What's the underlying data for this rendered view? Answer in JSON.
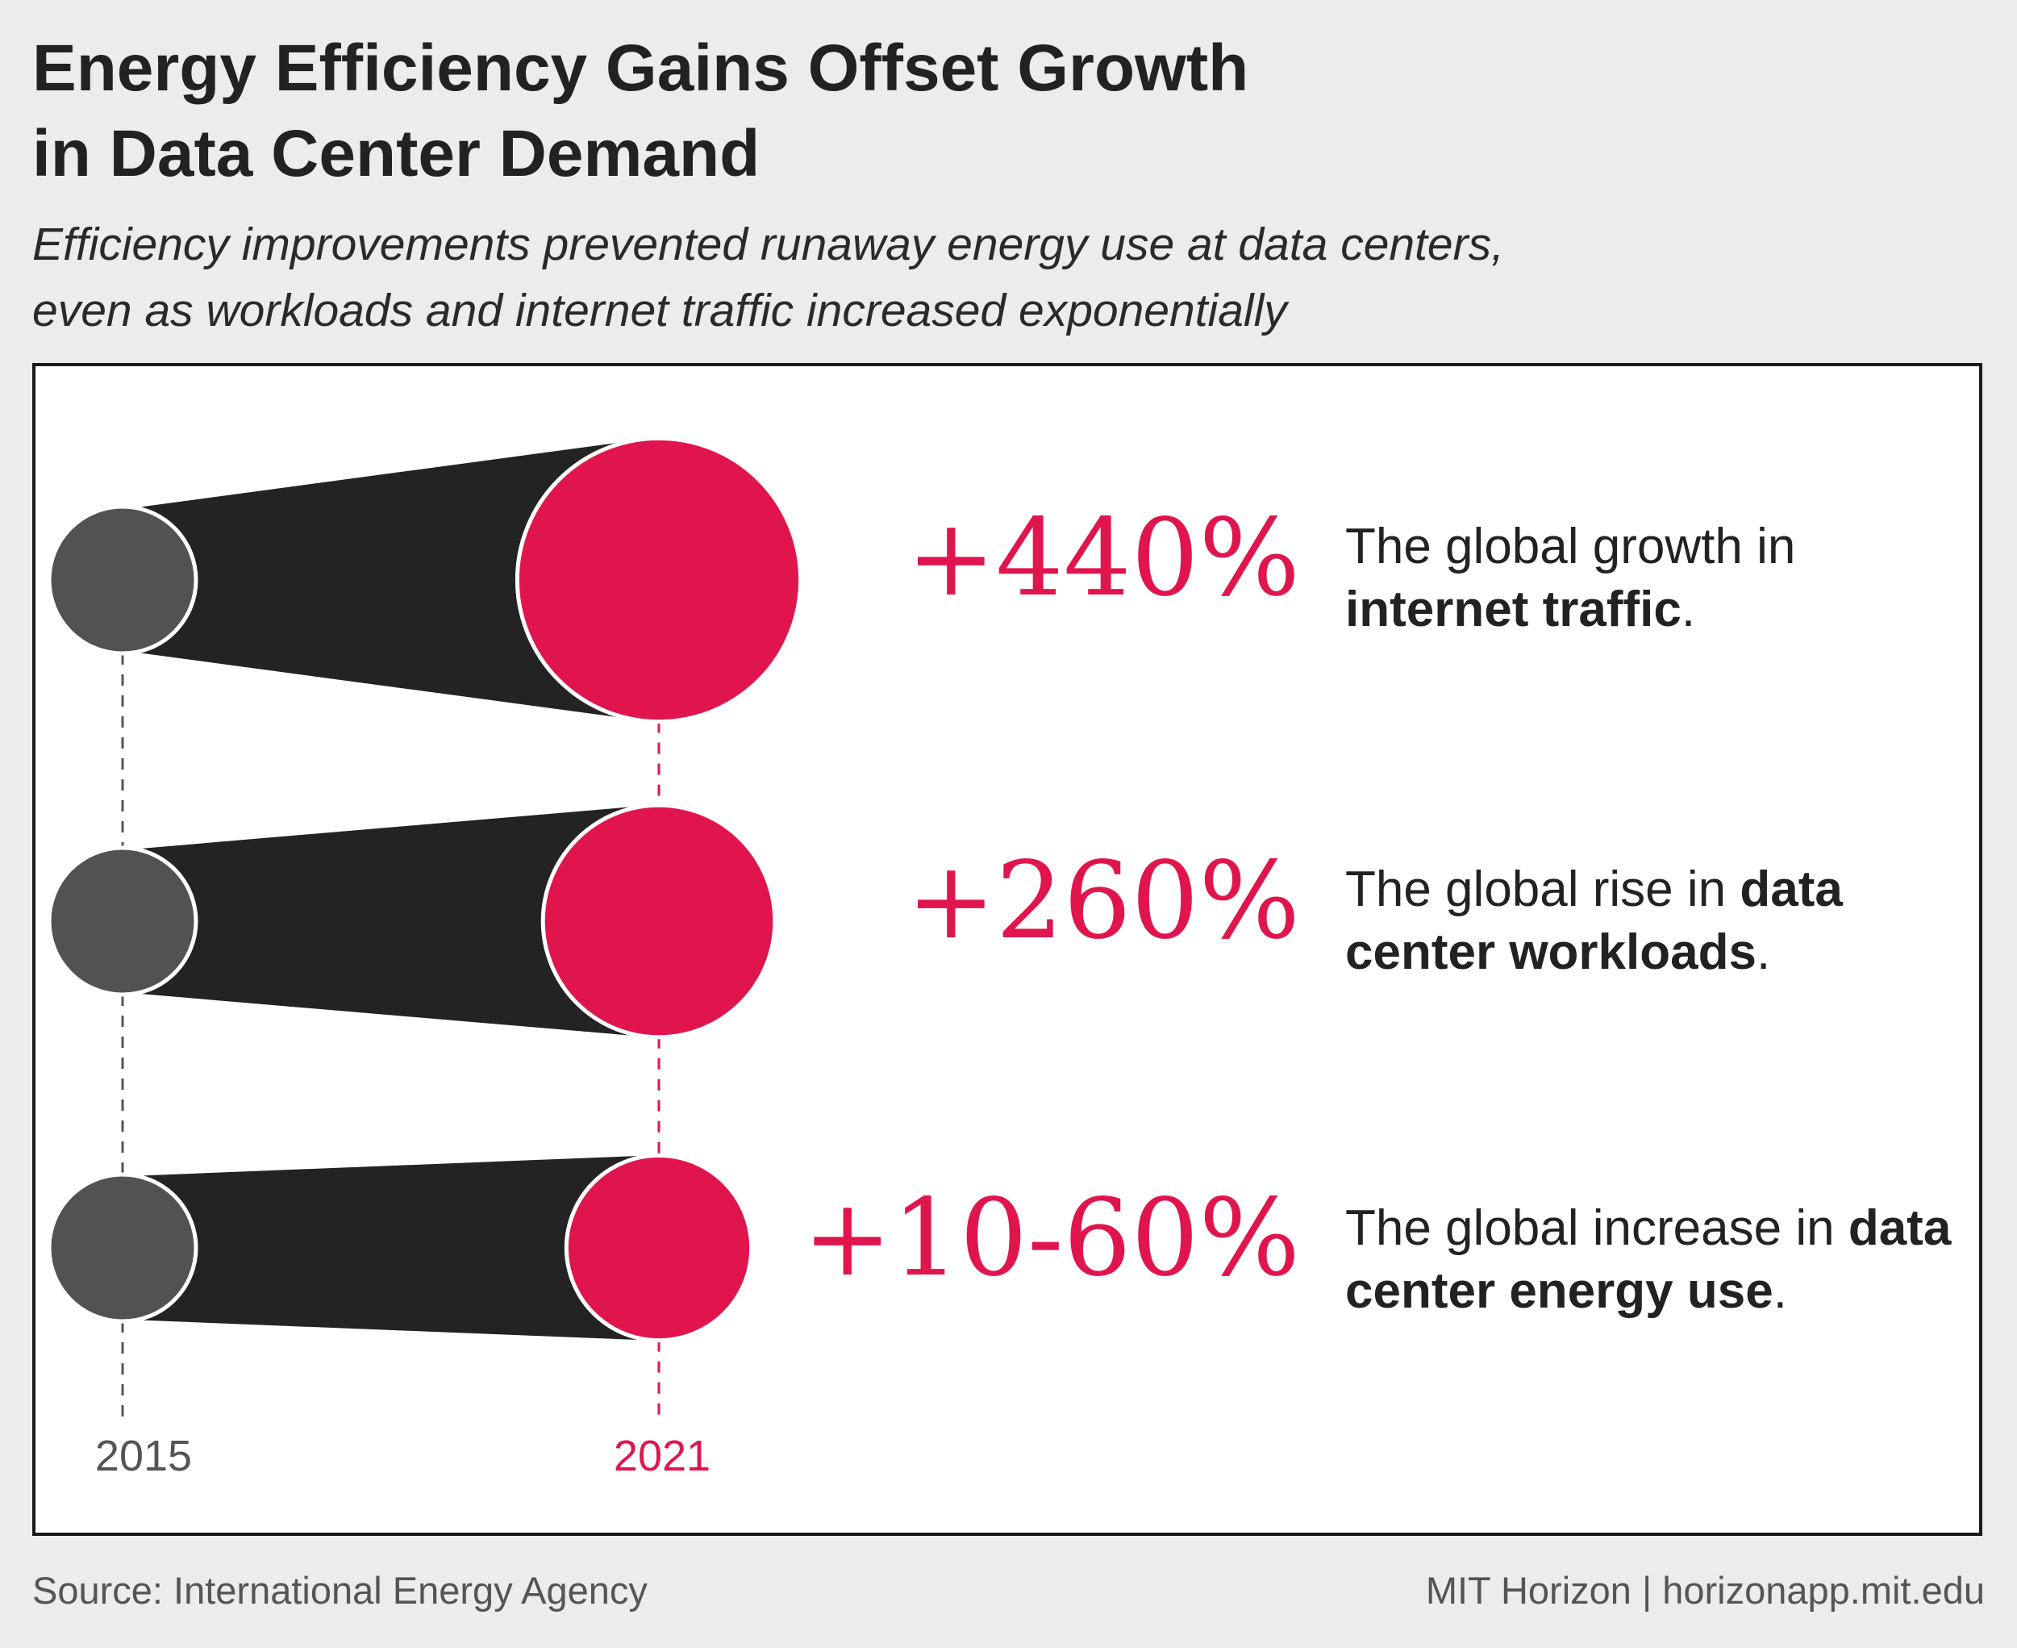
{
  "title_lines": [
    "Energy Efficiency Gains Offset Growth",
    "in Data Center Demand"
  ],
  "subtitle_lines": [
    "Efficiency improvements prevented runaway energy use at data centers,",
    "even as workloads and internet traffic increased exponentially"
  ],
  "chart_data": {
    "type": "bubble-comparison",
    "x_labels": [
      "2015",
      "2021"
    ],
    "baseline_size": 1.0,
    "rows": [
      {
        "value_label": "+440%",
        "relative_size_2021": 1.93,
        "desc_pre": "The global growth in ",
        "desc_bold": "internet traffic",
        "desc_post": "."
      },
      {
        "value_label": "+260%",
        "relative_size_2021": 1.58,
        "desc_pre": "The global rise in ",
        "desc_bold": "data center workloads",
        "desc_post": "."
      },
      {
        "value_label": "+10-60%",
        "relative_size_2021": 1.26,
        "desc_pre": "The global increase in ",
        "desc_bold": "data center energy use",
        "desc_post": "."
      }
    ]
  },
  "colors": {
    "accent": "#e0154e",
    "circle_2015": "#525254",
    "band": "#232323",
    "text": "#222222",
    "muted": "#555555"
  },
  "footer": {
    "source": "Source: International Energy Agency",
    "credit": "MIT Horizon | horizonapp.mit.edu"
  }
}
